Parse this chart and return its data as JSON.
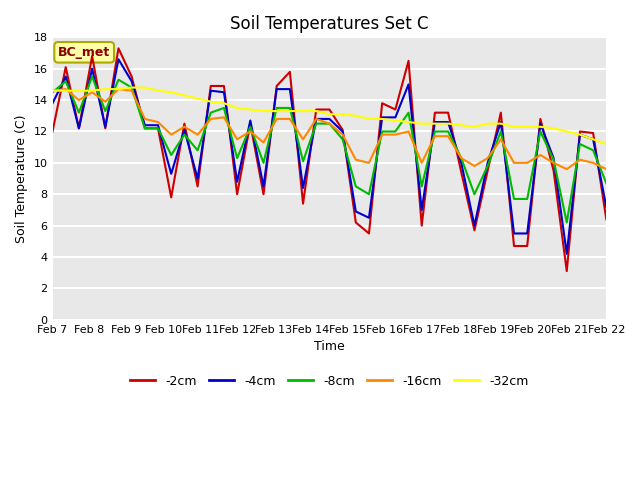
{
  "title": "Soil Temperatures Set C",
  "xlabel": "Time",
  "ylabel": "Soil Temperature (C)",
  "ylim": [
    0,
    18
  ],
  "yticks": [
    0,
    2,
    4,
    6,
    8,
    10,
    12,
    14,
    16,
    18
  ],
  "annotation": "BC_met",
  "line_colors": {
    "-2cm": "#cc0000",
    "-4cm": "#0000cc",
    "-8cm": "#00bb00",
    "-16cm": "#ff8800",
    "-32cm": "#ffff00"
  },
  "time_labels": [
    "Feb 7",
    "Feb 8",
    "Feb 9",
    "Feb 10",
    "Feb 11",
    "Feb 12",
    "Feb 13",
    "Feb 14",
    "Feb 15",
    "Feb 16",
    "Feb 17",
    "Feb 18",
    "Feb 19",
    "Feb 20",
    "Feb 21",
    "Feb 22"
  ],
  "x_values": [
    7,
    8,
    9,
    10,
    11,
    12,
    13,
    14,
    15,
    16,
    17,
    18,
    19,
    20,
    21,
    22
  ],
  "series": {
    "-2cm": [
      12.0,
      16.1,
      12.2,
      16.8,
      12.2,
      17.3,
      15.5,
      12.2,
      12.2,
      7.8,
      12.5,
      8.5,
      14.9,
      14.9,
      8.0,
      12.5,
      8.0,
      14.9,
      15.8,
      7.4,
      13.4,
      13.4,
      12.1,
      6.2,
      5.5,
      13.8,
      13.4,
      16.5,
      6.0,
      13.2,
      13.2,
      9.4,
      5.7,
      9.5,
      13.2,
      4.7,
      4.7,
      12.8,
      9.5,
      3.1,
      12.0,
      11.9,
      6.4
    ],
    "-4cm": [
      13.8,
      15.5,
      12.2,
      16.0,
      12.3,
      16.6,
      15.2,
      12.4,
      12.4,
      9.3,
      12.1,
      9.0,
      14.6,
      14.5,
      8.8,
      12.7,
      8.5,
      14.7,
      14.7,
      8.4,
      12.8,
      12.8,
      12.0,
      6.9,
      6.5,
      12.9,
      12.9,
      15.0,
      7.0,
      12.6,
      12.6,
      10.0,
      6.0,
      10.0,
      12.6,
      5.5,
      5.5,
      12.5,
      10.3,
      4.2,
      11.8,
      11.5,
      7.2
    ],
    "-8cm": [
      14.5,
      15.2,
      13.2,
      15.5,
      13.3,
      15.3,
      14.8,
      12.2,
      12.2,
      10.5,
      11.8,
      10.8,
      13.2,
      13.5,
      10.3,
      12.3,
      10.0,
      13.5,
      13.5,
      10.1,
      12.5,
      12.5,
      11.5,
      8.5,
      8.0,
      12.0,
      12.0,
      13.2,
      8.5,
      12.0,
      12.0,
      10.3,
      8.0,
      9.8,
      12.0,
      7.7,
      7.7,
      12.0,
      10.2,
      6.2,
      11.2,
      10.8,
      8.7
    ],
    "-16cm": [
      14.6,
      14.7,
      14.0,
      14.5,
      13.9,
      14.7,
      14.6,
      12.8,
      12.6,
      11.8,
      12.3,
      11.8,
      12.8,
      12.9,
      11.5,
      12.0,
      11.3,
      12.8,
      12.8,
      11.5,
      12.8,
      12.5,
      11.8,
      10.2,
      10.0,
      11.8,
      11.8,
      12.0,
      10.0,
      11.7,
      11.7,
      10.3,
      9.8,
      10.3,
      11.5,
      10.0,
      10.0,
      10.5,
      10.0,
      9.6,
      10.2,
      10.0,
      9.6
    ],
    "-32cm": [
      14.6,
      14.6,
      14.6,
      14.6,
      14.7,
      14.7,
      14.8,
      14.8,
      14.6,
      14.5,
      14.3,
      14.1,
      13.9,
      13.8,
      13.5,
      13.4,
      13.3,
      13.3,
      13.3,
      13.3,
      13.3,
      13.1,
      13.1,
      13.0,
      12.8,
      12.8,
      12.7,
      12.6,
      12.5,
      12.5,
      12.5,
      12.4,
      12.3,
      12.5,
      12.5,
      12.3,
      12.3,
      12.3,
      12.2,
      12.0,
      11.8,
      11.5,
      11.2
    ]
  }
}
